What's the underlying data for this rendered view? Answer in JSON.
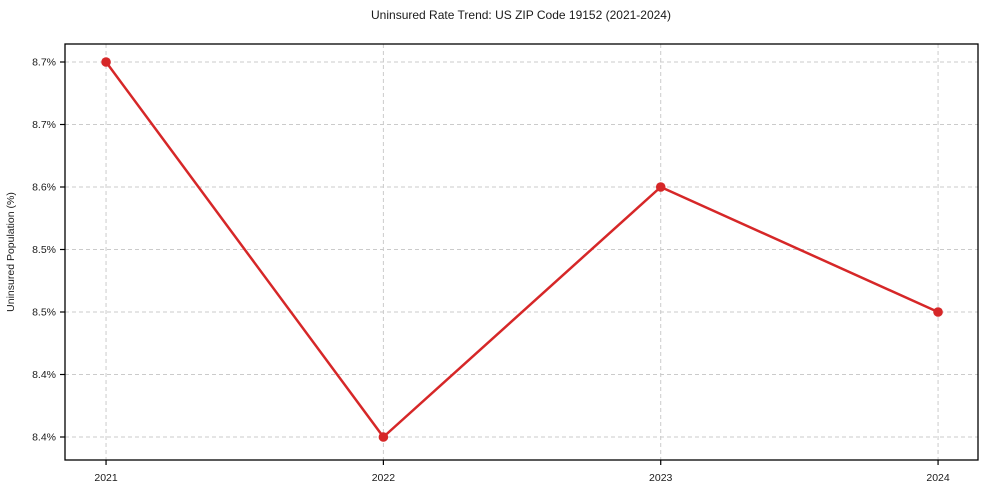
{
  "chart_data": {
    "type": "line",
    "title": "Uninsured Rate Trend: US ZIP Code 19152 (2021-2024)",
    "ylabel": "Uninsured Population (%)",
    "xlabel": "",
    "x": [
      2021,
      2022,
      2023,
      2024
    ],
    "categories": [
      "2021",
      "2022",
      "2023",
      "2024"
    ],
    "series": [
      {
        "name": "Uninsured Rate",
        "values": [
          8.7,
          8.4,
          8.6,
          8.5
        ]
      }
    ],
    "xtick_labels": [
      "2021",
      "2022",
      "2023",
      "2024"
    ],
    "ytick_values": [
      8.4,
      8.45,
      8.5,
      8.55,
      8.6,
      8.65,
      8.7
    ],
    "ytick_labels": [
      "8.4%",
      "8.4%",
      "8.5%",
      "8.5%",
      "8.6%",
      "8.7%",
      "8.7%"
    ],
    "xlim": [
      2020.852,
      2024.144
    ],
    "ylim": [
      8.3816,
      8.7144
    ],
    "grid": true,
    "legend_position": "none",
    "line_color": "#d62728",
    "marker": "circle",
    "grid_color": "#cbcbcb",
    "axis_color": "#000000"
  }
}
